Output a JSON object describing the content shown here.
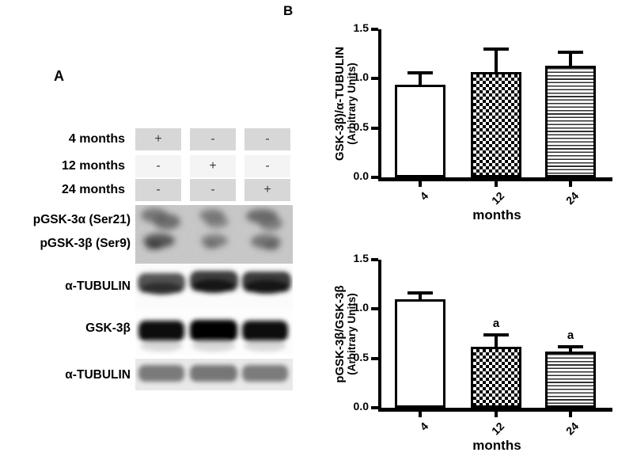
{
  "figure": {
    "panel_a_label": "A",
    "panel_b_label": "B"
  },
  "panel_a": {
    "dose_table": {
      "rows": [
        {
          "label": "4 months",
          "cells": [
            "+",
            "-",
            "-"
          ]
        },
        {
          "label": "12 months",
          "cells": [
            "-",
            "+",
            "-"
          ]
        },
        {
          "label": "24 months",
          "cells": [
            "-",
            "-",
            "+"
          ]
        }
      ]
    },
    "blot_labels": [
      "pGSK-3α (Ser21)",
      "pGSK-3β (Ser9)",
      "α-TUBULIN",
      "GSK-3β",
      "α-TUBULIN"
    ]
  },
  "chart_data": [
    {
      "type": "bar",
      "panel": "B-top",
      "title": "",
      "categories": [
        "4",
        "12",
        "24"
      ],
      "values": [
        0.94,
        1.07,
        1.13
      ],
      "errors_upper": [
        0.12,
        0.23,
        0.14
      ],
      "annotations": [
        "",
        "",
        ""
      ],
      "ylabel_lines": [
        "GSK-3β)/α-TUBULIN",
        "(Arbitrary Units)"
      ],
      "xlabel": "months",
      "ylim": [
        0,
        1.5
      ],
      "yticks": [
        0,
        0.5,
        1,
        1.5
      ],
      "bar_patterns": [
        "solid-white",
        "checkerboard",
        "horizontal-lines"
      ],
      "grid": false,
      "legend": "none",
      "x_tick_rotation": 45
    },
    {
      "type": "bar",
      "panel": "B-bottom",
      "title": "",
      "categories": [
        "4",
        "12",
        "24"
      ],
      "values": [
        1.1,
        0.62,
        0.57
      ],
      "errors_upper": [
        0.06,
        0.12,
        0.05
      ],
      "annotations": [
        "",
        "a",
        "a"
      ],
      "ylabel_lines": [
        "pGSK-3β/GSK-3β",
        "(Arbitrary Units)"
      ],
      "xlabel": "months",
      "ylim": [
        0,
        1.5
      ],
      "yticks": [
        0,
        0.5,
        1,
        1.5
      ],
      "bar_patterns": [
        "solid-white",
        "checkerboard",
        "horizontal-lines"
      ],
      "grid": false,
      "legend": "none",
      "x_tick_rotation": 45
    }
  ],
  "colors": {
    "axis": "#000000",
    "text": "#000000",
    "bar_fill": "#ffffff",
    "table_cell_dark": "#d7d7d7",
    "table_cell_light": "#f4f4f4",
    "sign_text": "#3b3b3b"
  }
}
